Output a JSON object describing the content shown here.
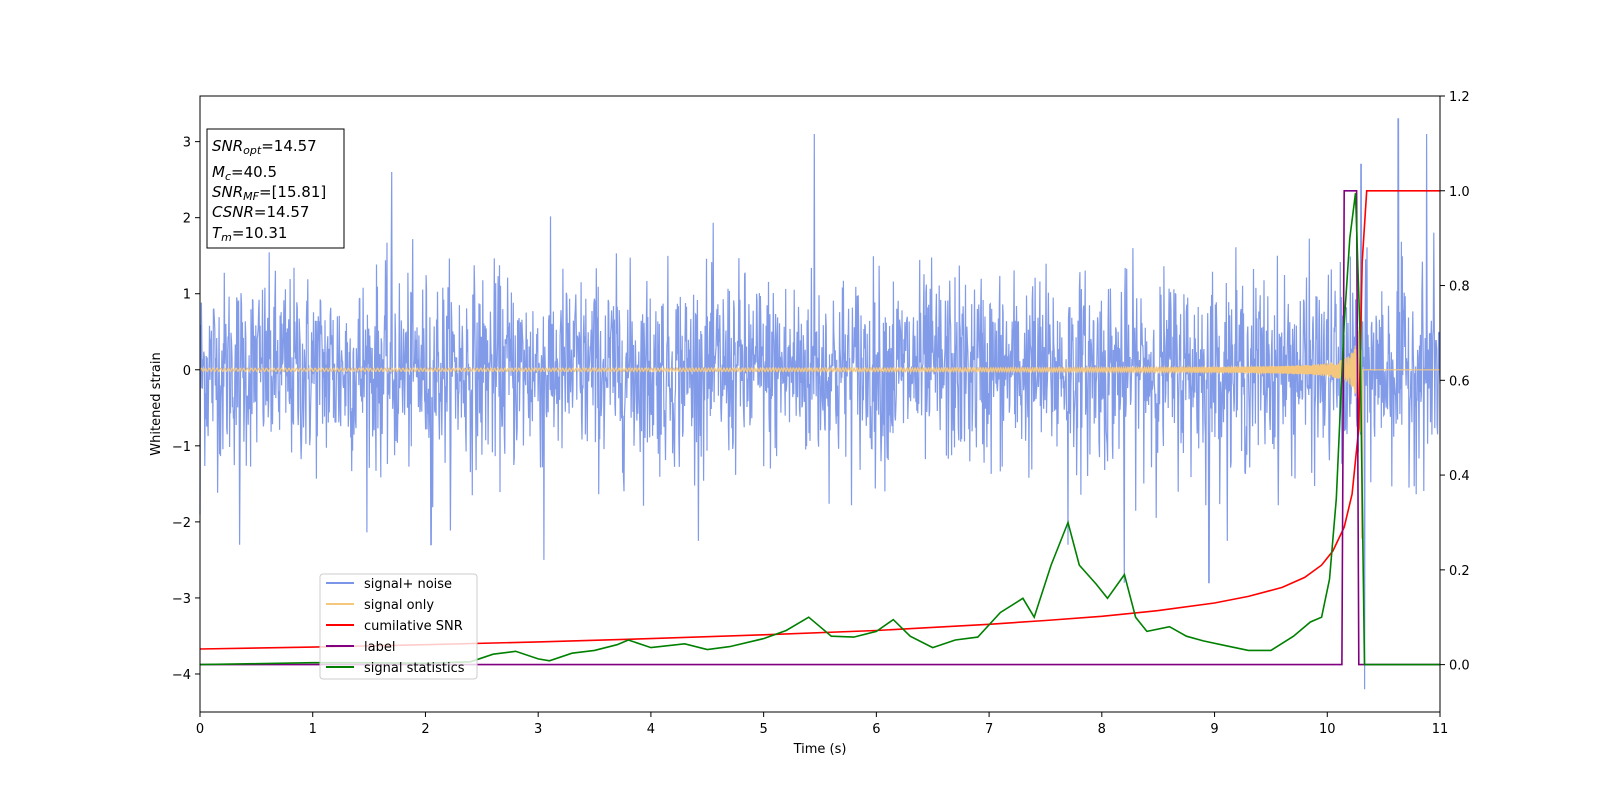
{
  "chart_data": {
    "type": "line",
    "xlabel": "Time (s)",
    "ylabel": "Whitened strain",
    "xlim": [
      0,
      11
    ],
    "ylim": [
      -4.5,
      3.6
    ],
    "y2lim": [
      -0.1,
      1.2
    ],
    "x_ticks": [
      "0",
      "1",
      "2",
      "3",
      "4",
      "5",
      "6",
      "7",
      "8",
      "9",
      "10",
      "11"
    ],
    "y_ticks": [
      "3",
      "2",
      "1",
      "0",
      "−1",
      "−2",
      "−3",
      "−4"
    ],
    "y2_ticks": [
      "1.2",
      "1.0",
      "0.8",
      "0.6",
      "0.4",
      "0.2",
      "0.0"
    ],
    "grid": false,
    "legend": {
      "placement": "lower-left",
      "entries": [
        "signal+ noise",
        "signal only",
        "cumilative SNR",
        "label",
        "signal statistics"
      ]
    },
    "info_box": {
      "snr_opt": {
        "sym": "SNR",
        "sub": "opt",
        "value": "=14.57"
      },
      "mc": {
        "sym": "M",
        "sub": "c",
        "value": "=40.5"
      },
      "snr_mf": {
        "sym": "SNR",
        "sub": "MF",
        "value": "=[15.81]"
      },
      "csnr": {
        "sym": "CSNR",
        "value": "=14.57"
      },
      "tm": {
        "sym": "T",
        "sub": "m",
        "value": "=10.31"
      }
    },
    "series": [
      {
        "name": "signal+ noise",
        "axis": "left",
        "color": "#7b96e8",
        "description_stats": {
          "noise_range": [
            -2.5,
            3.3
          ],
          "samples_rendered": 2600
        },
        "spikes": [
          [
            0.0,
            -1.9
          ],
          [
            0.35,
            -2.3
          ],
          [
            1.7,
            2.6
          ],
          [
            2.05,
            -2.3
          ],
          [
            3.05,
            -2.5
          ],
          [
            5.45,
            3.1
          ],
          [
            7.7,
            -2.3
          ],
          [
            8.2,
            -2.8
          ],
          [
            8.95,
            -2.8
          ],
          [
            10.3,
            2.7
          ],
          [
            10.33,
            -4.2
          ],
          [
            10.63,
            3.3
          ],
          [
            10.88,
            3.1
          ]
        ]
      },
      {
        "name": "signal only",
        "axis": "left",
        "color": "#f5c77e",
        "chirp": {
          "start": 0,
          "end": 10.31,
          "peak_amplitude": 2.5,
          "merger_time": 10.31
        }
      },
      {
        "name": "cumilative SNR",
        "axis": "right",
        "color": "#ff0000",
        "x": [
          0,
          1,
          2,
          3,
          4,
          5,
          6,
          7,
          7.5,
          8,
          8.5,
          9,
          9.3,
          9.6,
          9.8,
          9.95,
          10.05,
          10.15,
          10.22,
          10.28,
          10.31,
          10.35,
          11
        ],
        "y": [
          0.033,
          0.037,
          0.042,
          0.048,
          0.055,
          0.063,
          0.072,
          0.085,
          0.093,
          0.102,
          0.114,
          0.13,
          0.144,
          0.163,
          0.184,
          0.21,
          0.24,
          0.29,
          0.36,
          0.5,
          0.85,
          1.0,
          1.0
        ]
      },
      {
        "name": "label",
        "axis": "right",
        "color": "#800080",
        "x": [
          0,
          10.13,
          10.15,
          10.26,
          10.28,
          11
        ],
        "y": [
          0,
          0,
          1.0,
          1.0,
          0,
          0
        ]
      },
      {
        "name": "signal statistics",
        "axis": "right",
        "color": "#008000",
        "x": [
          0,
          0.5,
          1.0,
          1.5,
          2.0,
          2.4,
          2.6,
          2.8,
          3.0,
          3.1,
          3.3,
          3.5,
          3.7,
          3.8,
          4.0,
          4.3,
          4.5,
          4.7,
          5.0,
          5.2,
          5.4,
          5.6,
          5.8,
          6.0,
          6.15,
          6.3,
          6.5,
          6.7,
          6.9,
          7.1,
          7.3,
          7.4,
          7.55,
          7.7,
          7.8,
          7.95,
          8.05,
          8.2,
          8.3,
          8.4,
          8.6,
          8.75,
          8.9,
          9.1,
          9.3,
          9.5,
          9.7,
          9.85,
          9.95,
          10.02,
          10.08,
          10.15,
          10.2,
          10.25,
          10.29,
          10.33,
          10.4,
          11
        ],
        "y": [
          0.0,
          0.002,
          0.004,
          0.004,
          0.003,
          0.006,
          0.022,
          0.028,
          0.012,
          0.008,
          0.024,
          0.03,
          0.042,
          0.052,
          0.036,
          0.044,
          0.032,
          0.038,
          0.055,
          0.072,
          0.1,
          0.06,
          0.058,
          0.07,
          0.095,
          0.06,
          0.036,
          0.052,
          0.058,
          0.11,
          0.14,
          0.1,
          0.21,
          0.3,
          0.21,
          0.17,
          0.14,
          0.19,
          0.1,
          0.07,
          0.08,
          0.06,
          0.05,
          0.04,
          0.03,
          0.03,
          0.06,
          0.09,
          0.1,
          0.18,
          0.35,
          0.72,
          0.9,
          0.995,
          0.7,
          0.0,
          0.0,
          0.0
        ]
      }
    ]
  }
}
